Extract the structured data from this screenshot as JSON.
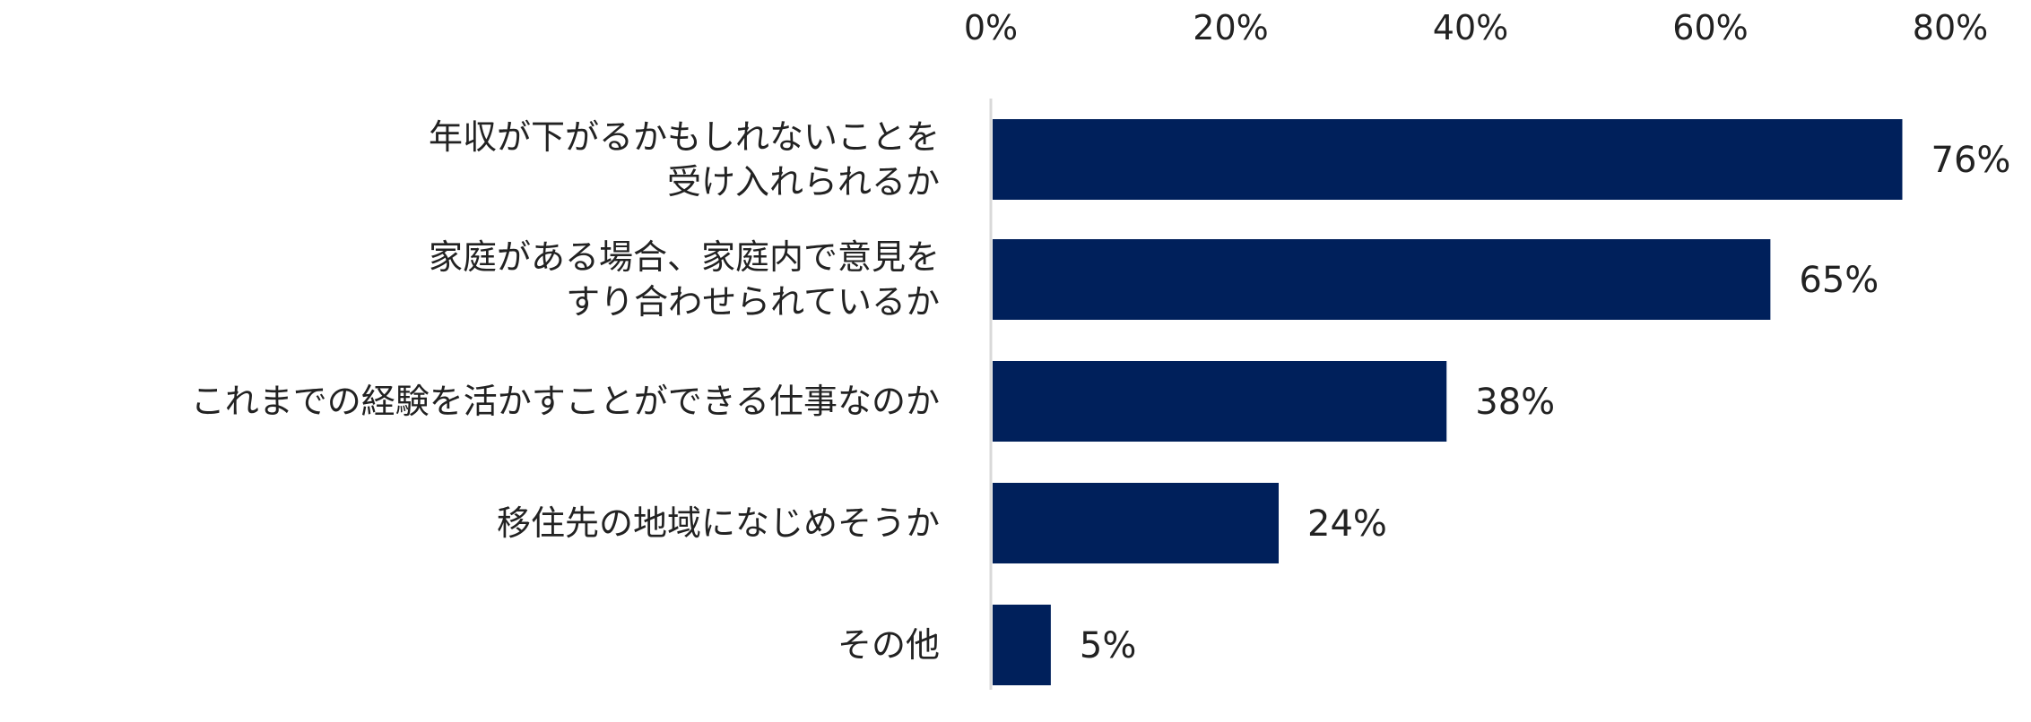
{
  "chart_data": {
    "type": "bar",
    "orientation": "horizontal",
    "categories": [
      [
        "年収が下がるかもしれないことを",
        "受け入れられるか"
      ],
      [
        "家庭がある場合、家庭内で意見を",
        "すり合わせられているか"
      ],
      [
        "これまでの経験を活かすことができる仕事なのか"
      ],
      [
        "移住先の地域になじめそうか"
      ],
      [
        "その他"
      ]
    ],
    "values": [
      76,
      65,
      38,
      24,
      5
    ],
    "data_labels": [
      "76%",
      "65%",
      "38%",
      "24%",
      "5%"
    ],
    "x_ticks": [
      "0%",
      "20%",
      "40%",
      "60%",
      "80%"
    ],
    "x_tick_values": [
      0,
      20,
      40,
      60,
      80
    ],
    "xlim": [
      0,
      80
    ],
    "x_axis_position": "top",
    "grid": false,
    "legend": "none",
    "bar_color": "#00205B",
    "axis_line_color": "#D9D9D9"
  }
}
